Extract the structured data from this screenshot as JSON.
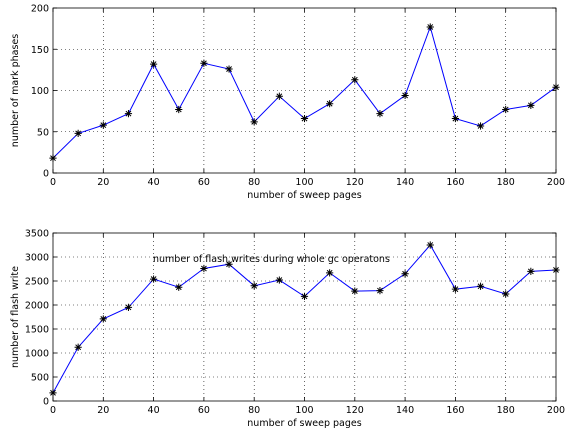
{
  "chart_data": [
    {
      "type": "line",
      "title": "",
      "xlabel": "number of sweep pages",
      "ylabel": "number of mark phases",
      "xlim": [
        0,
        200
      ],
      "ylim": [
        0,
        200
      ],
      "xticks": [
        0,
        20,
        40,
        60,
        80,
        100,
        120,
        140,
        160,
        180,
        200
      ],
      "yticks": [
        0,
        50,
        100,
        150,
        200
      ],
      "grid": true,
      "marker": "asterisk",
      "line_color": "#0000ff",
      "marker_color": "#000000",
      "series": [
        {
          "x": [
            0,
            10,
            20,
            30,
            40,
            50,
            60,
            70,
            80,
            90,
            100,
            110,
            120,
            130,
            140,
            150,
            160,
            170,
            180,
            190,
            200
          ],
          "values": [
            18,
            48,
            58,
            72,
            132,
            77,
            133,
            126,
            62,
            93,
            66,
            84,
            113,
            72,
            94,
            177,
            66,
            57,
            77,
            82,
            104
          ]
        }
      ]
    },
    {
      "type": "line",
      "title": "",
      "xlabel": "number of sweep pages",
      "ylabel": "number of flash write",
      "xlim": [
        0,
        200
      ],
      "ylim": [
        0,
        3500
      ],
      "xticks": [
        0,
        20,
        40,
        60,
        80,
        100,
        120,
        140,
        160,
        180,
        200
      ],
      "yticks": [
        0,
        500,
        1000,
        1500,
        2000,
        2500,
        3000,
        3500
      ],
      "grid": true,
      "marker": "asterisk",
      "line_color": "#0000ff",
      "marker_color": "#000000",
      "annotation": "number of flash writes during whole gc operatons",
      "series": [
        {
          "x": [
            0,
            10,
            20,
            30,
            40,
            50,
            60,
            70,
            80,
            90,
            100,
            110,
            120,
            130,
            140,
            150,
            160,
            170,
            180,
            190,
            200
          ],
          "values": [
            170,
            1120,
            1710,
            1950,
            2540,
            2370,
            2760,
            2850,
            2400,
            2520,
            2180,
            2670,
            2290,
            2300,
            2650,
            3250,
            2330,
            2390,
            2230,
            2700,
            2730
          ]
        }
      ]
    }
  ]
}
